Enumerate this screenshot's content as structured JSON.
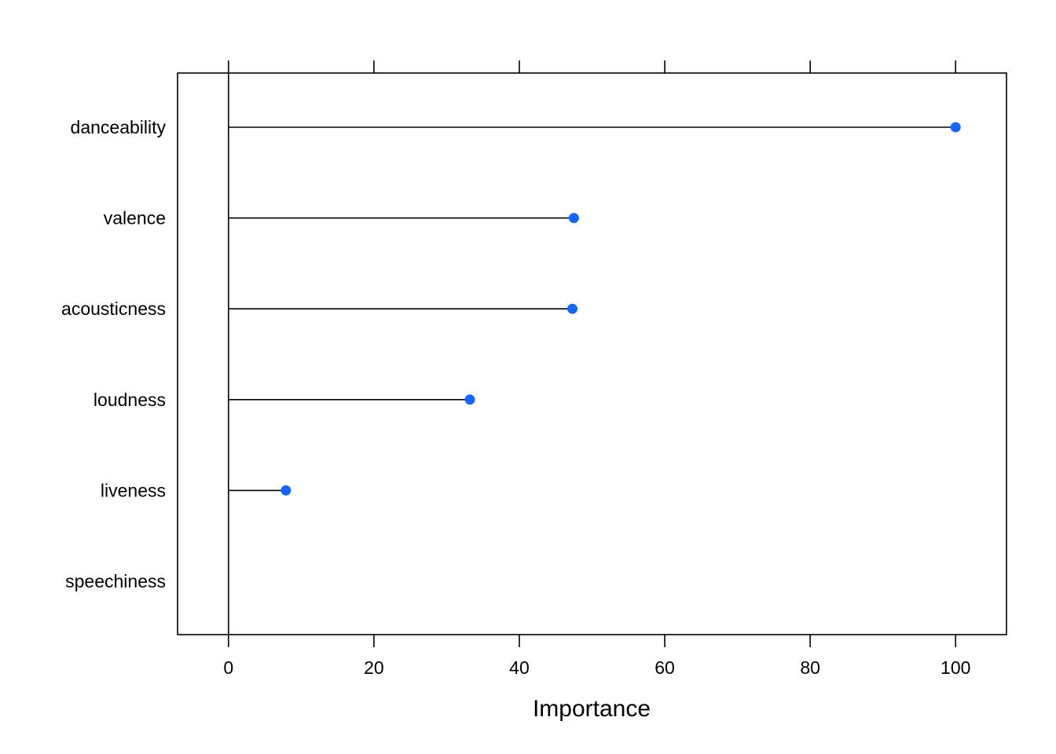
{
  "chart_data": {
    "type": "dotplot",
    "xlabel": "Importance",
    "xlim": [
      -7,
      107
    ],
    "xticks": [
      0,
      20,
      40,
      60,
      80,
      100
    ],
    "categories": [
      "danceability",
      "valence",
      "acousticness",
      "loudness",
      "liveness",
      "speechiness"
    ],
    "values": [
      100,
      47.5,
      47.3,
      33.2,
      7.9,
      0
    ],
    "point_color": "#1565FF",
    "grid": false,
    "legend": "none"
  }
}
